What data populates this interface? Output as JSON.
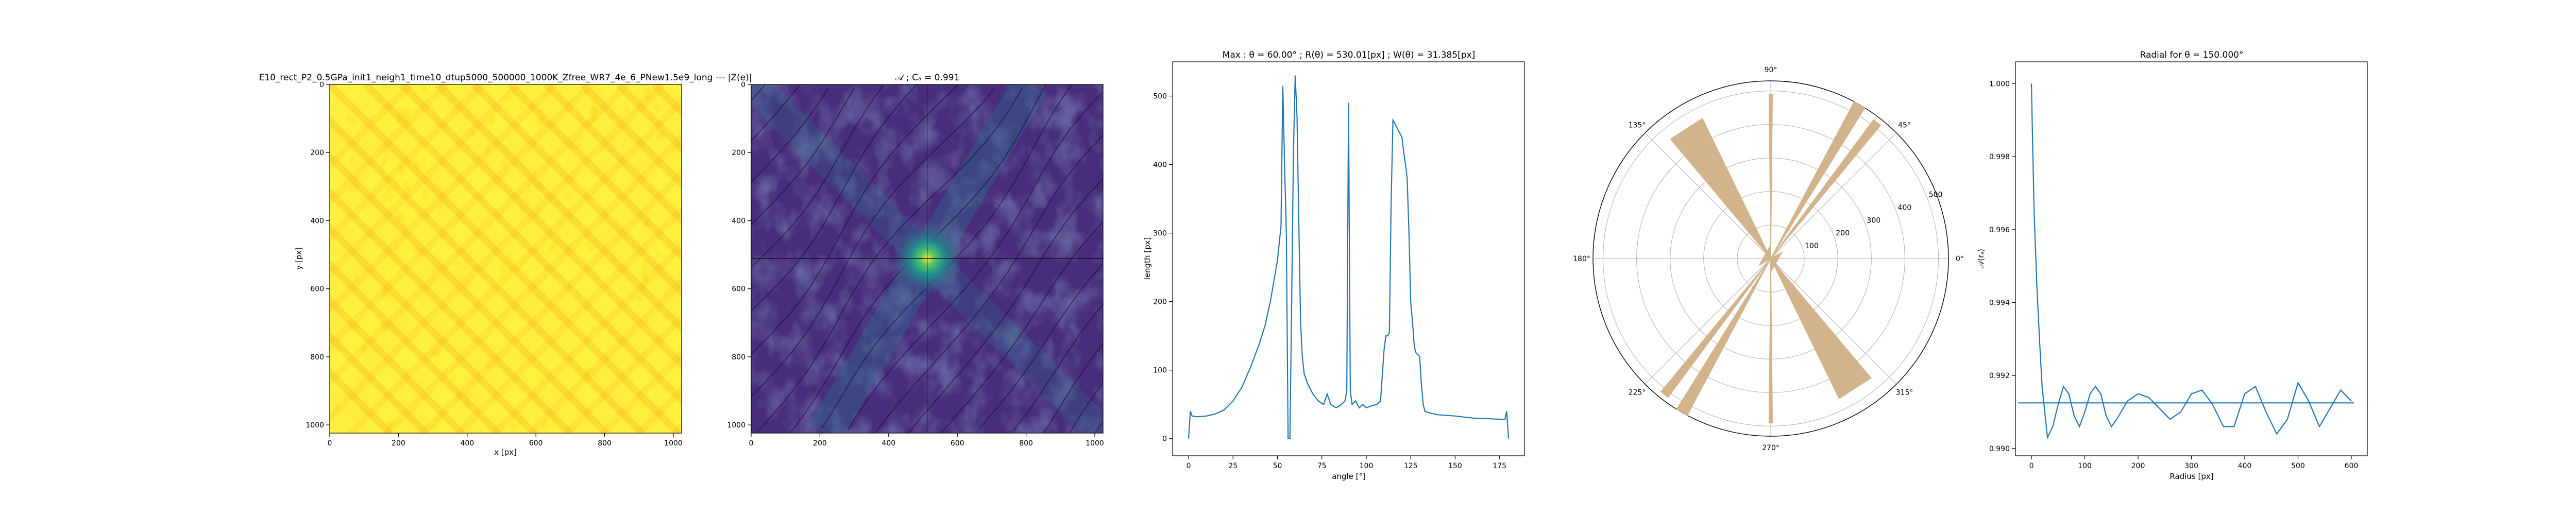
{
  "chart_data": [
    {
      "type": "heatmap",
      "title": "E10_rect_P2_0.5GPa_init1_neigh1_time10_dtup5000_500000_1000K_Zfree_WR7_4e_6_PNew1.5e9_long --- |Z(e)|",
      "xlabel": "x [px]",
      "ylabel": "y [px]",
      "xlim": [
        0,
        1024
      ],
      "ylim": [
        1024,
        0
      ],
      "xticks": [
        0,
        200,
        400,
        600,
        800,
        1000
      ],
      "yticks": [
        0,
        200,
        400,
        600,
        800,
        1000
      ],
      "colormap": "yellow-orange",
      "colors": {
        "low": "#ffff66",
        "mid": "#ffd21e",
        "high": "#f08c00"
      }
    },
    {
      "type": "heatmap",
      "title": "𝒜 ; Cₐ = 0.991",
      "xlabel": "",
      "ylabel": "",
      "xlim": [
        0,
        1024
      ],
      "ylim": [
        1024,
        0
      ],
      "xticks": [
        0,
        200,
        400,
        600,
        800,
        1000
      ],
      "yticks": [
        0,
        200,
        400,
        600,
        800,
        1000
      ],
      "colormap": "viridis",
      "colors": {
        "low": "#440154",
        "mid": "#31688e",
        "high": "#35b779",
        "peak": "#fde725"
      }
    },
    {
      "type": "line",
      "title": "Max : θ = 60.00° ; R(θ) = 530.01[px] ; W(θ) = 31.385[px]",
      "xlabel": "angle [°]",
      "ylabel": "length [px]",
      "xlim": [
        -9,
        189
      ],
      "ylim": [
        -25,
        550
      ],
      "xticks": [
        0,
        25,
        50,
        75,
        100,
        125,
        150,
        175
      ],
      "yticks": [
        0,
        100,
        200,
        300,
        400,
        500
      ],
      "color": "#1f77b4",
      "x": [
        0,
        1,
        2,
        5,
        10,
        15,
        20,
        25,
        30,
        35,
        40,
        43,
        46,
        48,
        50,
        52,
        53,
        54,
        55,
        56,
        57,
        58,
        59,
        60,
        61,
        62,
        63,
        64,
        65,
        67,
        70,
        73,
        76,
        78,
        80,
        83,
        86,
        88,
        89,
        90,
        91,
        92,
        94,
        96,
        98,
        100,
        103,
        106,
        108,
        110,
        111,
        112,
        113,
        114,
        115,
        116,
        118,
        120,
        121,
        122,
        123,
        124,
        125,
        126,
        127,
        128,
        130,
        131,
        132,
        133,
        135,
        140,
        150,
        160,
        170,
        178,
        179,
        180
      ],
      "y": [
        0,
        40,
        33,
        32,
        33,
        36,
        42,
        55,
        75,
        105,
        140,
        165,
        200,
        230,
        260,
        310,
        515,
        400,
        300,
        0,
        0,
        200,
        420,
        530,
        470,
        320,
        170,
        120,
        95,
        80,
        65,
        55,
        50,
        65,
        50,
        45,
        50,
        55,
        70,
        490,
        70,
        50,
        55,
        45,
        50,
        45,
        48,
        50,
        55,
        130,
        150,
        150,
        155,
        350,
        465,
        460,
        450,
        440,
        420,
        400,
        380,
        300,
        200,
        170,
        135,
        125,
        120,
        80,
        50,
        40,
        38,
        35,
        33,
        30,
        29,
        28,
        40,
        0
      ]
    },
    {
      "type": "polar",
      "title": "",
      "angle_ticks": [
        "0°",
        "45°",
        "90°",
        "135°",
        "180°",
        "225°",
        "270°",
        "315°"
      ],
      "radial_ticks": [
        100,
        200,
        300,
        400,
        500
      ],
      "radial_max": 530,
      "color": "#d2b48c",
      "spikes": [
        {
          "angle": 60,
          "r": 530,
          "width": 4
        },
        {
          "angle": 240,
          "r": 530,
          "width": 4
        },
        {
          "angle": 90,
          "r": 490,
          "width": 1.2
        },
        {
          "angle": 270,
          "r": 490,
          "width": 1.2
        },
        {
          "angle": 52,
          "r": 515,
          "width": 3
        },
        {
          "angle": 232,
          "r": 515,
          "width": 3
        },
        {
          "angle": 123,
          "r": 465,
          "width": 14
        },
        {
          "angle": 303,
          "r": 465,
          "width": 14
        },
        {
          "angle": 150,
          "r": 40,
          "width": 120
        },
        {
          "angle": 330,
          "r": 40,
          "width": 120
        }
      ]
    },
    {
      "type": "line",
      "title": "Radial for θ = 150.000°",
      "xlabel": "Radius [px]",
      "ylabel": "𝒜(rₐ)",
      "xlim": [
        -30,
        630
      ],
      "ylim": [
        0.9898,
        1.0006
      ],
      "xticks": [
        0,
        100,
        200,
        300,
        400,
        500,
        600
      ],
      "yticks": [
        0.99,
        0.992,
        0.994,
        0.996,
        0.998,
        1.0
      ],
      "color": "#1f77b4",
      "baseline": {
        "y": 0.99125,
        "x": [
          -25,
          605
        ]
      },
      "x": [
        0,
        2,
        5,
        10,
        15,
        20,
        30,
        40,
        50,
        60,
        70,
        80,
        90,
        100,
        110,
        120,
        130,
        140,
        150,
        160,
        180,
        200,
        220,
        240,
        260,
        280,
        300,
        320,
        340,
        360,
        380,
        400,
        420,
        440,
        460,
        480,
        500,
        520,
        540,
        560,
        580,
        600
      ],
      "y": [
        1.0,
        0.9985,
        0.9965,
        0.9945,
        0.993,
        0.9917,
        0.9903,
        0.9906,
        0.9912,
        0.9917,
        0.9915,
        0.9909,
        0.9906,
        0.991,
        0.9915,
        0.9917,
        0.9915,
        0.9909,
        0.9906,
        0.9908,
        0.9913,
        0.9915,
        0.9914,
        0.9911,
        0.9908,
        0.991,
        0.9915,
        0.9916,
        0.9912,
        0.9906,
        0.9906,
        0.9915,
        0.9917,
        0.991,
        0.9904,
        0.9908,
        0.9918,
        0.9913,
        0.9906,
        0.9911,
        0.9916,
        0.9913
      ]
    }
  ]
}
